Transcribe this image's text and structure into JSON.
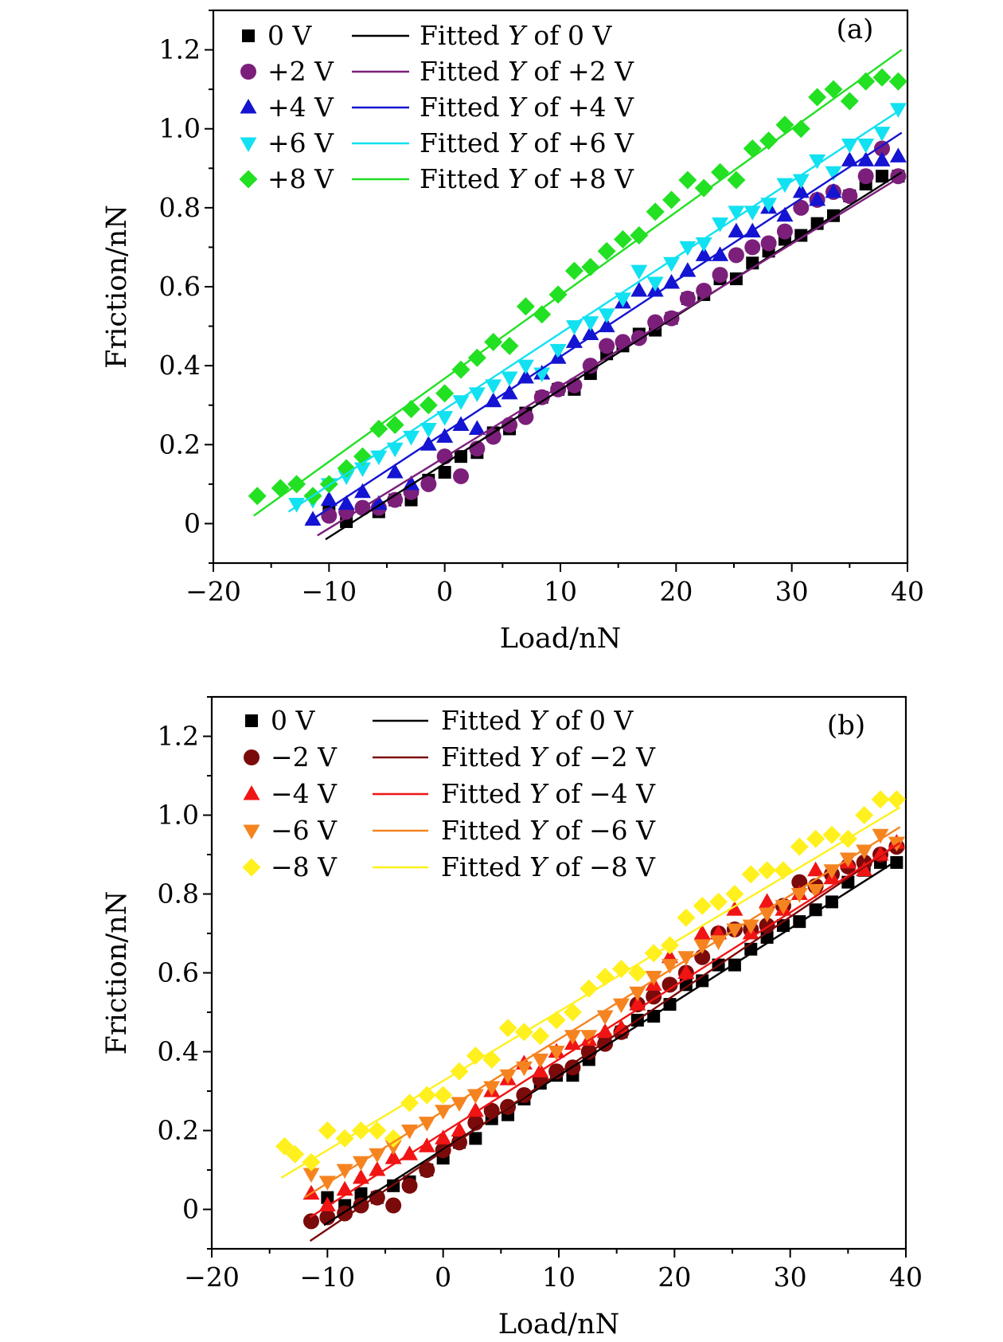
{
  "chart_data": [
    {
      "type": "scatter",
      "panel_label": "(a)",
      "xlabel": "Load/nN",
      "ylabel": "Friction/nN",
      "xlim": [
        -20,
        40
      ],
      "ylim": [
        -0.1,
        1.3
      ],
      "xticks": [
        -20,
        -10,
        0,
        10,
        20,
        30,
        40
      ],
      "xtick_labels": [
        "−20",
        "−10",
        "0",
        "10",
        "20",
        "30",
        "40"
      ],
      "yticks": [
        0,
        0.2,
        0.4,
        0.6,
        0.8,
        1.0,
        1.2
      ],
      "ytick_labels": [
        "0",
        "0.2",
        "0.4",
        "0.6",
        "0.8",
        "1.0",
        "1.2"
      ],
      "grid": false,
      "legend_placement": "top-left",
      "legend_fit_prefix": "Fitted ",
      "legend_fit_var": "Y",
      "legend_fit_of": " of ",
      "series": [
        {
          "name": "0 V",
          "fit_name": " 0 V",
          "marker": "square",
          "color": "#000000",
          "x": [
            -10,
            -8.5,
            -5.7,
            -4.3,
            -2.9,
            -1.4,
            0,
            1.4,
            2.8,
            4.2,
            5.6,
            7.0,
            8.4,
            9.8,
            11.2,
            12.6,
            14.0,
            15.4,
            16.8,
            18.2,
            19.6,
            21.0,
            22.4,
            23.8,
            25.2,
            26.6,
            28.0,
            29.4,
            30.8,
            32.2,
            33.6,
            35.0,
            36.4,
            37.8,
            39.2
          ],
          "y": [
            0.03,
            0.005,
            0.03,
            0.06,
            0.06,
            0.11,
            0.13,
            0.17,
            0.18,
            0.23,
            0.24,
            0.28,
            0.32,
            0.34,
            0.34,
            0.38,
            0.43,
            0.45,
            0.48,
            0.49,
            0.52,
            0.57,
            0.58,
            0.62,
            0.62,
            0.66,
            0.69,
            0.72,
            0.73,
            0.76,
            0.78,
            0.83,
            0.86,
            0.88,
            0.88
          ],
          "fit": {
            "x": [
              -10.3,
              39.5
            ],
            "y": [
              -0.04,
              0.89
            ]
          }
        },
        {
          "name": "+2 V",
          "fit_name": "+2 V",
          "marker": "circle",
          "color": "#7B1F7B",
          "x": [
            -10,
            -8.5,
            -7.1,
            -5.7,
            -4.3,
            -2.9,
            -1.4,
            0,
            1.4,
            2.8,
            4.2,
            5.6,
            7.0,
            8.4,
            9.8,
            11.2,
            12.6,
            14.0,
            15.4,
            16.8,
            18.2,
            19.6,
            21.0,
            22.4,
            23.8,
            25.2,
            26.6,
            28.0,
            29.4,
            30.8,
            32.2,
            33.6,
            35.0,
            36.4,
            37.8,
            39.2
          ],
          "y": [
            0.02,
            0.03,
            0.04,
            0.04,
            0.06,
            0.08,
            0.1,
            0.17,
            0.12,
            0.19,
            0.22,
            0.25,
            0.27,
            0.32,
            0.34,
            0.35,
            0.4,
            0.45,
            0.46,
            0.47,
            0.51,
            0.52,
            0.57,
            0.59,
            0.63,
            0.68,
            0.7,
            0.71,
            0.74,
            0.8,
            0.82,
            0.84,
            0.83,
            0.88,
            0.95,
            0.88
          ],
          "fit": {
            "x": [
              -11,
              39.5
            ],
            "y": [
              -0.03,
              0.88
            ]
          }
        },
        {
          "name": "+4 V",
          "fit_name": "+4 V",
          "marker": "triangle-up",
          "color": "#1414D2",
          "x": [
            -11.4,
            -10,
            -8.5,
            -7.1,
            -5.7,
            -4.3,
            -2.9,
            -1.4,
            0,
            1.4,
            2.8,
            4.2,
            5.6,
            7.0,
            8.4,
            9.8,
            11.2,
            12.6,
            14.0,
            15.4,
            16.8,
            18.2,
            19.6,
            21.0,
            22.4,
            23.8,
            25.2,
            26.6,
            28.0,
            29.4,
            30.8,
            32.2,
            33.6,
            35.0,
            36.4,
            37.8,
            39.2
          ],
          "y": [
            0.01,
            0.06,
            0.05,
            0.08,
            0.05,
            0.13,
            0.1,
            0.2,
            0.22,
            0.25,
            0.24,
            0.31,
            0.33,
            0.37,
            0.38,
            0.42,
            0.46,
            0.48,
            0.5,
            0.56,
            0.59,
            0.59,
            0.61,
            0.64,
            0.68,
            0.68,
            0.74,
            0.74,
            0.8,
            0.78,
            0.84,
            0.82,
            0.84,
            0.92,
            0.92,
            0.92,
            0.93
          ],
          "fit": {
            "x": [
              -12,
              39.5
            ],
            "y": [
              0.0,
              0.99
            ]
          }
        },
        {
          "name": "+6 V",
          "fit_name": "+6 V",
          "marker": "triangle-down",
          "color": "#12E1F1",
          "x": [
            -12.8,
            -11.4,
            -10,
            -8.5,
            -7.1,
            -5.7,
            -4.3,
            -2.9,
            -1.4,
            0,
            1.4,
            2.8,
            4.2,
            5.6,
            7.0,
            8.4,
            9.8,
            11.2,
            12.6,
            14.0,
            15.4,
            16.8,
            18.2,
            19.6,
            21.0,
            22.4,
            23.8,
            25.2,
            26.6,
            28.0,
            29.4,
            30.8,
            32.2,
            33.6,
            35.0,
            36.4,
            37.8,
            39.2
          ],
          "y": [
            0.05,
            0.06,
            0.1,
            0.12,
            0.14,
            0.17,
            0.19,
            0.22,
            0.24,
            0.27,
            0.31,
            0.33,
            0.35,
            0.37,
            0.4,
            0.38,
            0.44,
            0.5,
            0.51,
            0.53,
            0.57,
            0.64,
            0.61,
            0.66,
            0.7,
            0.71,
            0.76,
            0.79,
            0.79,
            0.81,
            0.86,
            0.87,
            0.92,
            0.89,
            0.96,
            0.96,
            0.99,
            1.05
          ],
          "fit": {
            "x": [
              -13.5,
              39.5
            ],
            "y": [
              0.03,
              1.05
            ]
          }
        },
        {
          "name": "+8 V",
          "fit_name": "+8 V",
          "marker": "diamond",
          "color": "#22E022",
          "x": [
            -16.2,
            -14.2,
            -12.8,
            -11.4,
            -10,
            -8.5,
            -7.1,
            -5.7,
            -4.3,
            -2.9,
            -1.4,
            0,
            1.4,
            2.8,
            4.2,
            5.6,
            7.0,
            8.4,
            9.8,
            11.2,
            12.6,
            14.0,
            15.4,
            16.8,
            18.2,
            19.6,
            21.0,
            22.4,
            23.8,
            25.2,
            26.6,
            28.0,
            29.4,
            30.8,
            32.2,
            33.6,
            35.0,
            36.4,
            37.8,
            39.2
          ],
          "y": [
            0.07,
            0.09,
            0.1,
            0.07,
            0.1,
            0.14,
            0.17,
            0.24,
            0.25,
            0.29,
            0.3,
            0.33,
            0.39,
            0.42,
            0.46,
            0.45,
            0.55,
            0.53,
            0.58,
            0.64,
            0.65,
            0.69,
            0.72,
            0.73,
            0.79,
            0.82,
            0.87,
            0.85,
            0.89,
            0.87,
            0.95,
            0.97,
            1.01,
            1.0,
            1.08,
            1.1,
            1.07,
            1.12,
            1.13,
            1.12
          ],
          "fit": {
            "x": [
              -16.5,
              39.5
            ],
            "y": [
              0.02,
              1.2
            ]
          }
        }
      ]
    },
    {
      "type": "scatter",
      "panel_label": "(b)",
      "xlabel": "Load/nN",
      "ylabel": "Friction/nN",
      "xlim": [
        -20,
        40
      ],
      "ylim": [
        -0.1,
        1.3
      ],
      "xticks": [
        -20,
        -10,
        0,
        10,
        20,
        30,
        40
      ],
      "xtick_labels": [
        "−20",
        "−10",
        "0",
        "10",
        "20",
        "30",
        "40"
      ],
      "yticks": [
        0,
        0.2,
        0.4,
        0.6,
        0.8,
        1.0,
        1.2
      ],
      "ytick_labels": [
        "0",
        "0.2",
        "0.4",
        "0.6",
        "0.8",
        "1.0",
        "1.2"
      ],
      "grid": false,
      "legend_placement": "top-left",
      "legend_fit_prefix": "Fitted ",
      "legend_fit_var": "Y",
      "legend_fit_of": " of ",
      "series": [
        {
          "name": "0 V",
          "fit_name": " 0 V",
          "marker": "square",
          "color": "#000000",
          "x": [
            -10,
            -8.5,
            -7.1,
            -5.7,
            -4.3,
            -2.9,
            -1.4,
            0,
            1.4,
            2.8,
            4.2,
            5.6,
            7.0,
            8.4,
            9.8,
            11.2,
            12.6,
            14.0,
            15.4,
            16.8,
            18.2,
            19.6,
            21.0,
            22.4,
            23.8,
            25.2,
            26.6,
            28.0,
            29.4,
            30.8,
            32.2,
            33.6,
            35.0,
            36.4,
            37.8,
            39.2
          ],
          "y": [
            0.03,
            0.01,
            0.04,
            0.03,
            0.06,
            0.07,
            0.1,
            0.13,
            0.17,
            0.18,
            0.23,
            0.24,
            0.28,
            0.32,
            0.34,
            0.34,
            0.38,
            0.43,
            0.45,
            0.48,
            0.49,
            0.52,
            0.57,
            0.58,
            0.62,
            0.62,
            0.66,
            0.69,
            0.72,
            0.73,
            0.76,
            0.78,
            0.83,
            0.86,
            0.88,
            0.88
          ],
          "fit": {
            "x": [
              -10.3,
              39.5
            ],
            "y": [
              -0.04,
              0.89
            ]
          }
        },
        {
          "name": "−2 V",
          "fit_name": "−2 V",
          "marker": "circle",
          "color": "#7B0A0A",
          "x": [
            -11.4,
            -10,
            -8.5,
            -7.1,
            -5.7,
            -4.3,
            -2.9,
            -1.4,
            0,
            1.4,
            2.8,
            4.2,
            5.6,
            7.0,
            8.4,
            9.8,
            11.2,
            12.6,
            14.0,
            15.4,
            16.8,
            18.2,
            19.6,
            21.0,
            22.4,
            23.8,
            25.2,
            26.6,
            28.0,
            29.4,
            30.8,
            32.2,
            33.6,
            35.0,
            36.4,
            37.8,
            39.2
          ],
          "y": [
            -0.03,
            -0.02,
            -0.01,
            0.01,
            0.03,
            0.01,
            0.06,
            0.1,
            0.15,
            0.17,
            0.22,
            0.25,
            0.26,
            0.29,
            0.33,
            0.35,
            0.36,
            0.4,
            0.42,
            0.45,
            0.52,
            0.54,
            0.57,
            0.6,
            0.64,
            0.7,
            0.71,
            0.71,
            0.72,
            0.77,
            0.83,
            0.82,
            0.85,
            0.87,
            0.88,
            0.9,
            0.92
          ],
          "fit": {
            "x": [
              -11.5,
              39.5
            ],
            "y": [
              -0.08,
              0.93
            ]
          }
        },
        {
          "name": "−4 V",
          "fit_name": "−4 V",
          "marker": "triangle-up",
          "color": "#F01414",
          "x": [
            -11.4,
            -10,
            -8.5,
            -7.1,
            -5.7,
            -4.3,
            -2.9,
            -1.4,
            0,
            1.4,
            2.8,
            4.2,
            5.6,
            7.0,
            8.4,
            9.8,
            11.2,
            12.6,
            14.0,
            15.4,
            16.8,
            18.2,
            19.6,
            21.0,
            22.4,
            23.8,
            25.2,
            26.6,
            28.0,
            29.4,
            30.8,
            32.2,
            33.6,
            35.0,
            36.4,
            37.8,
            39.2
          ],
          "y": [
            0.04,
            0.01,
            0.05,
            0.08,
            0.1,
            0.13,
            0.14,
            0.16,
            0.18,
            0.2,
            0.25,
            0.3,
            0.33,
            0.37,
            0.35,
            0.4,
            0.42,
            0.43,
            0.45,
            0.46,
            0.52,
            0.57,
            0.64,
            0.6,
            0.7,
            0.7,
            0.76,
            0.7,
            0.78,
            0.76,
            0.8,
            0.86,
            0.84,
            0.88,
            0.86,
            0.9,
            0.93
          ],
          "fit": {
            "x": [
              -11.5,
              39.5
            ],
            "y": [
              -0.02,
              0.93
            ]
          }
        },
        {
          "name": "−6 V",
          "fit_name": "−6 V",
          "marker": "triangle-down",
          "color": "#F58420",
          "x": [
            -11.4,
            -10,
            -8.5,
            -7.1,
            -5.7,
            -4.3,
            -2.9,
            -1.4,
            0,
            1.4,
            2.8,
            4.2,
            5.6,
            7.0,
            8.4,
            9.8,
            11.2,
            12.6,
            14.0,
            15.4,
            16.8,
            18.2,
            19.6,
            21.0,
            22.4,
            23.8,
            25.2,
            26.6,
            28.0,
            29.4,
            30.8,
            32.2,
            33.6,
            35.0,
            36.4,
            37.8,
            39.2
          ],
          "y": [
            0.09,
            0.07,
            0.1,
            0.12,
            0.14,
            0.16,
            0.2,
            0.22,
            0.25,
            0.27,
            0.29,
            0.31,
            0.34,
            0.36,
            0.38,
            0.4,
            0.44,
            0.44,
            0.49,
            0.52,
            0.55,
            0.59,
            0.62,
            0.64,
            0.67,
            0.68,
            0.71,
            0.72,
            0.75,
            0.77,
            0.8,
            0.81,
            0.86,
            0.89,
            0.91,
            0.95,
            0.93
          ],
          "fit": {
            "x": [
              -12,
              39.5
            ],
            "y": [
              0.03,
              0.97
            ]
          }
        },
        {
          "name": "−8 V",
          "fit_name": "−8 V",
          "marker": "diamond",
          "color": "#FFF01E",
          "x": [
            -13.7,
            -12.8,
            -11.4,
            -10,
            -8.5,
            -7.1,
            -5.7,
            -4.3,
            -2.9,
            -1.4,
            0,
            1.4,
            2.8,
            4.2,
            5.6,
            7.0,
            8.4,
            9.8,
            11.2,
            12.6,
            14.0,
            15.4,
            16.8,
            18.2,
            19.6,
            21.0,
            22.4,
            23.8,
            25.2,
            26.6,
            28.0,
            29.4,
            30.8,
            32.2,
            33.6,
            35.0,
            36.4,
            37.8,
            39.2
          ],
          "y": [
            0.16,
            0.14,
            0.12,
            0.2,
            0.18,
            0.2,
            0.2,
            0.18,
            0.27,
            0.29,
            0.29,
            0.35,
            0.39,
            0.38,
            0.46,
            0.45,
            0.44,
            0.48,
            0.5,
            0.56,
            0.59,
            0.61,
            0.6,
            0.65,
            0.67,
            0.74,
            0.77,
            0.78,
            0.8,
            0.85,
            0.86,
            0.86,
            0.92,
            0.94,
            0.95,
            0.94,
            1.0,
            1.04,
            1.04
          ],
          "fit": {
            "x": [
              -14,
              39.5
            ],
            "y": [
              0.08,
              1.02
            ]
          }
        }
      ]
    }
  ]
}
